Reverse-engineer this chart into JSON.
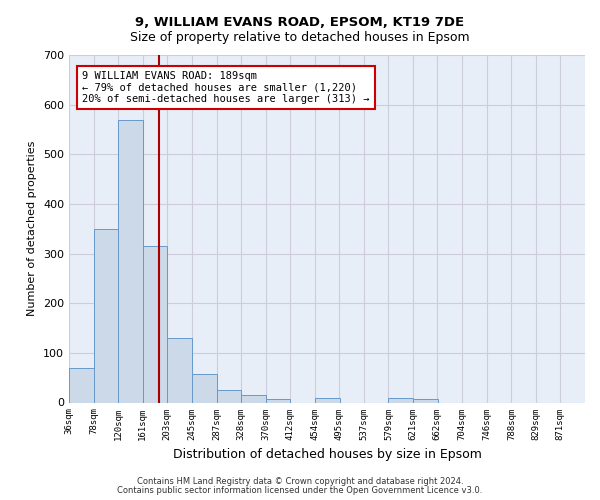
{
  "title1": "9, WILLIAM EVANS ROAD, EPSOM, KT19 7DE",
  "title2": "Size of property relative to detached houses in Epsom",
  "xlabel": "Distribution of detached houses by size in Epsom",
  "ylabel": "Number of detached properties",
  "bar_left_edges": [
    36,
    78,
    120,
    161,
    203,
    245,
    287,
    328,
    370,
    412,
    454,
    495,
    537,
    579,
    621,
    662,
    704,
    746,
    788,
    829
  ],
  "bar_heights": [
    70,
    350,
    570,
    315,
    130,
    57,
    25,
    15,
    8,
    0,
    9,
    0,
    0,
    10,
    8,
    0,
    0,
    0,
    0,
    0
  ],
  "bin_width": 42,
  "bar_color": "#ccd9e8",
  "bar_edge_color": "#6699cc",
  "tick_labels": [
    "36sqm",
    "78sqm",
    "120sqm",
    "161sqm",
    "203sqm",
    "245sqm",
    "287sqm",
    "328sqm",
    "370sqm",
    "412sqm",
    "454sqm",
    "495sqm",
    "537sqm",
    "579sqm",
    "621sqm",
    "662sqm",
    "704sqm",
    "746sqm",
    "788sqm",
    "829sqm",
    "871sqm"
  ],
  "subject_size": 189,
  "red_line_color": "#aa0000",
  "annotation_text": "9 WILLIAM EVANS ROAD: 189sqm\n← 79% of detached houses are smaller (1,220)\n20% of semi-detached houses are larger (313) →",
  "annotation_box_color": "#ffffff",
  "annotation_box_edge": "#cc0000",
  "ylim": [
    0,
    700
  ],
  "yticks": [
    0,
    100,
    200,
    300,
    400,
    500,
    600,
    700
  ],
  "footer1": "Contains HM Land Registry data © Crown copyright and database right 2024.",
  "footer2": "Contains public sector information licensed under the Open Government Licence v3.0.",
  "grid_color": "#ccccdd",
  "background_color": "#e8eef8"
}
